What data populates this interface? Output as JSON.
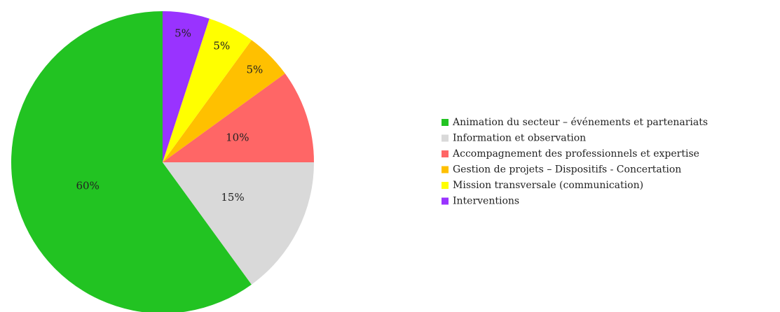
{
  "chart_data": {
    "type": "pie",
    "categories": [
      "Animation du secteur – événements et partenariats",
      "Information et observation",
      "Accompagnement des professionnels et expertise",
      "Gestion de projets –  Dispositifs - Concertation",
      "Mission transversale (communication)",
      "Interventions"
    ],
    "values": [
      60,
      15,
      10,
      5,
      5,
      5
    ],
    "value_labels": [
      "60%",
      "15%",
      "10%",
      "5%",
      "5%",
      "5%"
    ],
    "colors": [
      "#22c322",
      "#d9d9d9",
      "#ff6666",
      "#ffc000",
      "#ffff00",
      "#9933ff"
    ],
    "legend": "right"
  }
}
